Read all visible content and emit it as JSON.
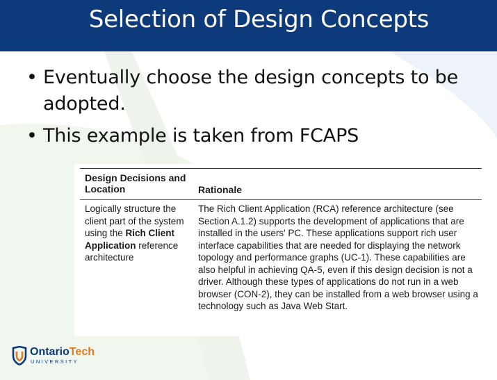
{
  "slide": {
    "title": "Selection of Design Concepts",
    "bullets": [
      "Eventually choose the design concepts to be adopted.",
      "This example is taken from FCAPS"
    ]
  },
  "table": {
    "header_left": "Design Decisions and Location",
    "header_right": "Rationale",
    "row": {
      "decision_prefix": "Logically structure the client part of the system using the ",
      "decision_bold": "Rich Client Application",
      "decision_suffix": " reference architecture",
      "rationale": "The Rich Client Application (RCA) reference architecture (see Section A.1.2) supports the development of applications that are installed in the users' PC. These applications support rich user interface capabilities that are needed for displaying the network topology and performance graphs (UC-1). These capabilities are also helpful in achieving QA-5, even if this design decision is not a driver. Although these types of applications do not run in a web browser (CON-2), they can be installed from a web browser using a technology such as Java Web Start."
    }
  },
  "logo": {
    "name_part1": "Ontario",
    "name_part2": "Tech",
    "subtitle": "UNIVERSITY"
  },
  "colors": {
    "title_bar": "#0d3a7a",
    "accent_orange": "#e07a1f",
    "background_swoosh": "#eef4ec"
  }
}
